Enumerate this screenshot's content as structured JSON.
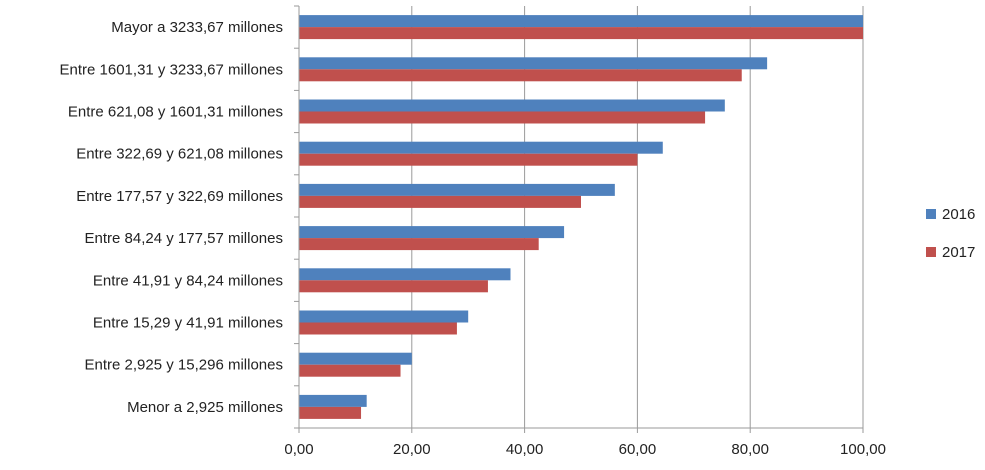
{
  "chart_data": {
    "type": "bar",
    "orientation": "horizontal",
    "categories": [
      "Mayor a 3233,67  millones",
      "Entre 1601,31 y 3233,67 millones",
      "Entre 621,08 y 1601,31 millones",
      "Entre 322,69 y 621,08 millones",
      "Entre 177,57 y 322,69 millones",
      "Entre 84,24 y 177,57 millones",
      "Entre 41,91 y 84,24 millones",
      "Entre 15,29 y 41,91 millones",
      "Entre 2,925 y 15,296 millones",
      "Menor a 2,925 millones"
    ],
    "series": [
      {
        "name": "2016",
        "color": "#4F81BD",
        "values": [
          100.0,
          83.0,
          75.5,
          64.5,
          56.0,
          47.0,
          37.5,
          30.0,
          20.0,
          12.0
        ]
      },
      {
        "name": "2017",
        "color": "#C0504D",
        "values": [
          100.0,
          78.5,
          72.0,
          60.0,
          50.0,
          42.5,
          33.5,
          28.0,
          18.0,
          11.0
        ]
      }
    ],
    "xlim": [
      0,
      100
    ],
    "xticks": [
      "0,00",
      "20,00",
      "40,00",
      "60,00",
      "80,00",
      "100,00"
    ],
    "xtick_values": [
      0,
      20,
      40,
      60,
      80,
      100
    ],
    "grid": "vertical",
    "legend": "right",
    "title": "",
    "xlabel": "",
    "ylabel": ""
  }
}
